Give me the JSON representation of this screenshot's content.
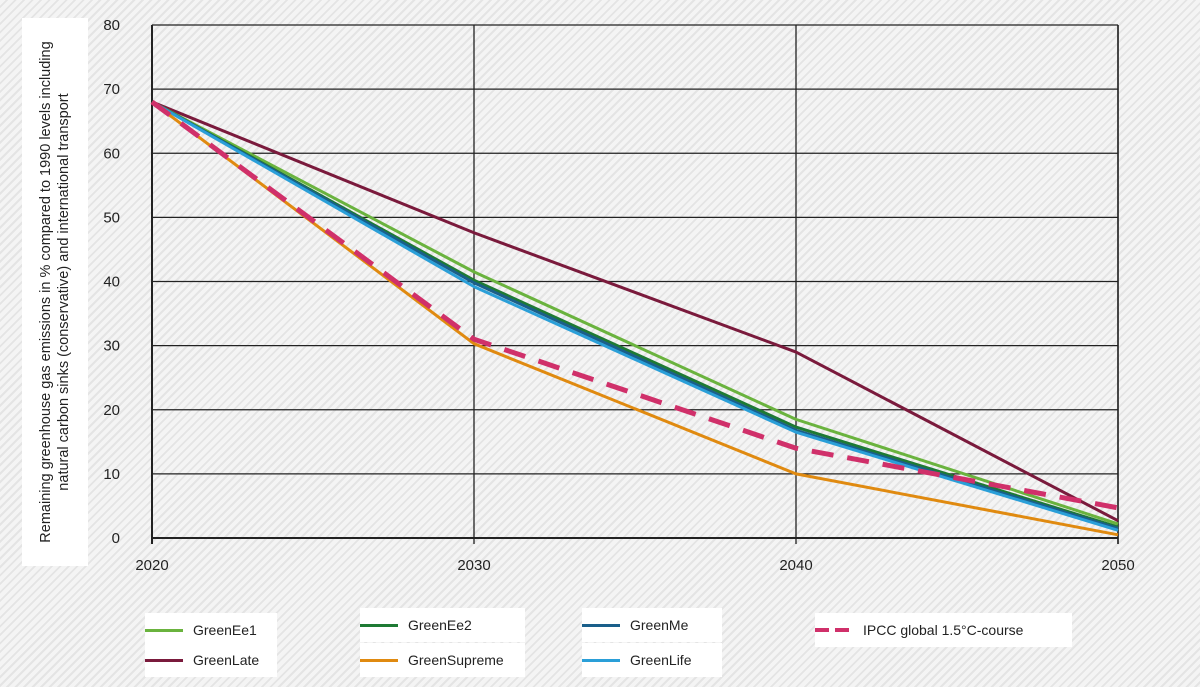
{
  "chart_data": {
    "type": "line",
    "ylabel": "Remaining greenhouse gas emissions in % compared to 1990 levels including natural carbon sinks (conservative) and international transport",
    "xlabel": "",
    "x": [
      2020,
      2030,
      2040,
      2050
    ],
    "xticks": [
      "2020",
      "2030",
      "2040",
      "2050"
    ],
    "yticks": [
      "0",
      "10",
      "20",
      "30",
      "40",
      "50",
      "60",
      "70",
      "80"
    ],
    "ylim": [
      0,
      80
    ],
    "xlim": [
      2020,
      2050
    ],
    "grid": true,
    "legend": "bottom",
    "series": [
      {
        "name": "GreenEe1",
        "color": "#6ab33e",
        "dash": false,
        "values": [
          68,
          41.5,
          18.5,
          2.2
        ]
      },
      {
        "name": "GreenEe2",
        "color": "#1e7a34",
        "dash": false,
        "values": [
          68,
          40.2,
          17.3,
          1.7
        ]
      },
      {
        "name": "GreenMe",
        "color": "#1a5f8a",
        "dash": false,
        "values": [
          68,
          39.8,
          16.8,
          1.5
        ]
      },
      {
        "name": "IPCC global 1.5°C-course",
        "color": "#d0306a",
        "dash": true,
        "values": [
          68,
          31,
          14,
          4.7
        ]
      },
      {
        "name": "GreenLate",
        "color": "#7a1a3c",
        "dash": false,
        "values": [
          68,
          47.6,
          29,
          2.7
        ]
      },
      {
        "name": "GreenSupreme",
        "color": "#e08a10",
        "dash": false,
        "values": [
          68,
          30.3,
          10,
          0.5
        ]
      },
      {
        "name": "GreenLife",
        "color": "#2a9fd8",
        "dash": false,
        "values": [
          68,
          39.2,
          16.5,
          1.2
        ]
      }
    ]
  }
}
